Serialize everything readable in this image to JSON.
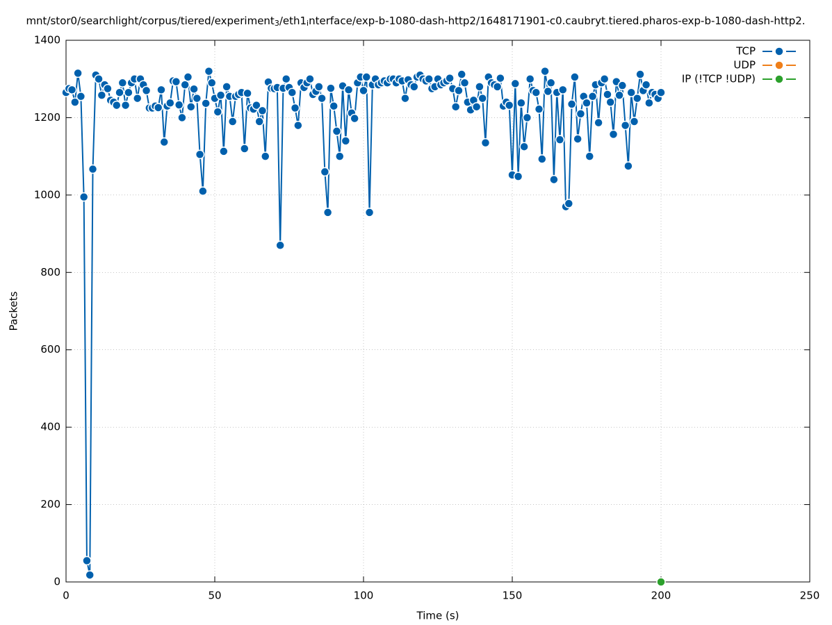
{
  "chart_data": {
    "type": "line",
    "title": [
      "mnt/stor0/searchlight/corpus/tiered/experiment",
      "3",
      "/eth1",
      "i",
      "nterface/exp-b-1080-dash-http2/1648171901-c0.caubryt.tiered.pharos-exp-b-1080-dash-http2."
    ],
    "title_subscript": [
      false,
      true,
      false,
      true,
      false
    ],
    "xlabel": "Time (s)",
    "ylabel": "Packets",
    "xlim": [
      0,
      250
    ],
    "xticks": [
      0,
      50,
      100,
      150,
      200,
      250
    ],
    "ylim": [
      0,
      1400
    ],
    "yticks": [
      0,
      200,
      400,
      600,
      800,
      1000,
      1200,
      1400
    ],
    "grid": true,
    "legend": "upper right",
    "series": [
      {
        "name": "TCP",
        "color": "#0060ad",
        "x": [
          0,
          1,
          2,
          3,
          4,
          5,
          6,
          7,
          8,
          9,
          10,
          11,
          12,
          13,
          14,
          15,
          16,
          17,
          18,
          19,
          20,
          21,
          22,
          23,
          24,
          25,
          26,
          27,
          28,
          29,
          30,
          31,
          32,
          33,
          34,
          35,
          36,
          37,
          38,
          39,
          40,
          41,
          42,
          43,
          44,
          45,
          46,
          47,
          48,
          49,
          50,
          51,
          52,
          53,
          54,
          55,
          56,
          57,
          58,
          59,
          60,
          61,
          62,
          63,
          64,
          65,
          66,
          67,
          68,
          69,
          70,
          71,
          72,
          73,
          74,
          75,
          76,
          77,
          78,
          79,
          80,
          81,
          82,
          83,
          84,
          85,
          86,
          87,
          88,
          89,
          90,
          91,
          92,
          93,
          94,
          95,
          96,
          97,
          98,
          99,
          100,
          101,
          102,
          103,
          104,
          105,
          106,
          107,
          108,
          109,
          110,
          111,
          112,
          113,
          114,
          115,
          116,
          117,
          118,
          119,
          120,
          121,
          122,
          123,
          124,
          125,
          126,
          127,
          128,
          129,
          130,
          131,
          132,
          133,
          134,
          135,
          136,
          137,
          138,
          139,
          140,
          141,
          142,
          143,
          144,
          145,
          146,
          147,
          148,
          149,
          150,
          151,
          152,
          153,
          154,
          155,
          156,
          157,
          158,
          159,
          160,
          161,
          162,
          163,
          164,
          165,
          166,
          167,
          168,
          169,
          170,
          171,
          172,
          173,
          174,
          175,
          176,
          177,
          178,
          179,
          180,
          181,
          182,
          183,
          184,
          185,
          186,
          187,
          188,
          189,
          190,
          191,
          192,
          193,
          194,
          195,
          196,
          197,
          198,
          199,
          200
        ],
        "values": [
          1265,
          1275,
          1272,
          1240,
          1315,
          1255,
          995,
          55,
          18,
          1067,
          1310,
          1300,
          1258,
          1285,
          1275,
          1245,
          1240,
          1232,
          1265,
          1290,
          1232,
          1265,
          1290,
          1300,
          1250,
          1300,
          1285,
          1270,
          1225,
          1225,
          1230,
          1226,
          1272,
          1137,
          1230,
          1238,
          1295,
          1293,
          1233,
          1200,
          1285,
          1305,
          1228,
          1274,
          1250,
          1105,
          1010,
          1237,
          1320,
          1290,
          1250,
          1215,
          1258,
          1113,
          1280,
          1255,
          1190,
          1255,
          1260,
          1265,
          1120,
          1263,
          1225,
          1222,
          1232,
          1190,
          1218,
          1100,
          1292,
          1276,
          1275,
          1278,
          870,
          1276,
          1300,
          1278,
          1265,
          1225,
          1180,
          1290,
          1278,
          1290,
          1300,
          1260,
          1268,
          1280,
          1250,
          1060,
          955,
          1276,
          1230,
          1165,
          1100,
          1282,
          1140,
          1272,
          1212,
          1198,
          1290,
          1305,
          1270,
          1305,
          955,
          1285,
          1300,
          1285,
          1290,
          1295,
          1290,
          1300,
          1300,
          1290,
          1300,
          1295,
          1250,
          1298,
          1285,
          1280,
          1305,
          1310,
          1300,
          1295,
          1300,
          1275,
          1280,
          1300,
          1285,
          1290,
          1295,
          1302,
          1275,
          1228,
          1270,
          1312,
          1290,
          1240,
          1220,
          1245,
          1228,
          1280,
          1250,
          1135,
          1305,
          1290,
          1285,
          1280,
          1302,
          1230,
          1240,
          1232,
          1052,
          1288,
          1048,
          1238,
          1125,
          1200,
          1300,
          1270,
          1265,
          1222,
          1093,
          1320,
          1268,
          1290,
          1040,
          1265,
          1143,
          1272,
          970,
          978,
          1235,
          1305,
          1145,
          1210,
          1255,
          1238,
          1100,
          1255,
          1285,
          1187,
          1290,
          1300,
          1260,
          1240,
          1157,
          1293,
          1258,
          1283,
          1180,
          1075,
          1265,
          1190,
          1250,
          1312,
          1270,
          1285,
          1238,
          1265,
          1260,
          1250,
          1265
        ]
      },
      {
        "name": "UDP",
        "color": "#ef7f1a",
        "x": [],
        "values": []
      },
      {
        "name": "IP (!TCP  !UDP)",
        "color": "#2ca02c",
        "x": [
          200
        ],
        "values": [
          0
        ]
      }
    ]
  }
}
